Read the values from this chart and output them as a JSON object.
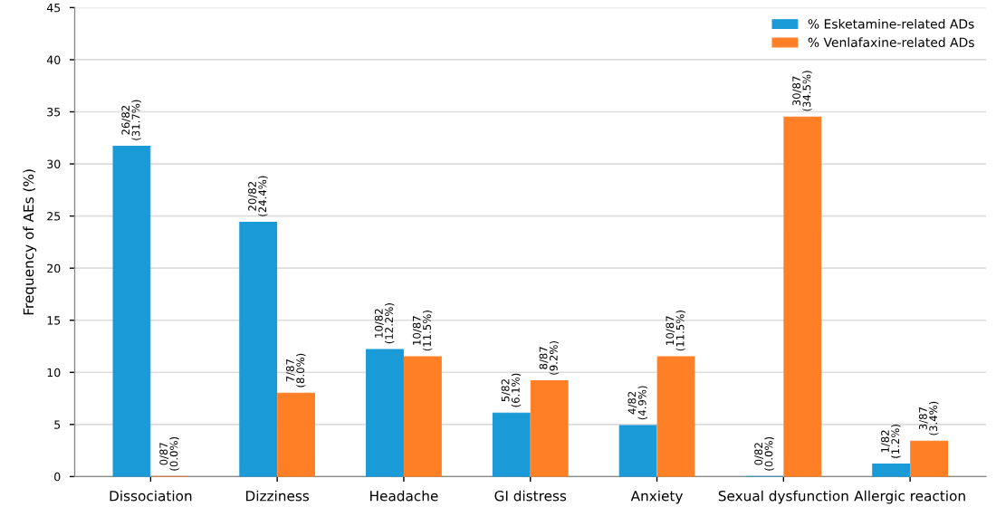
{
  "chart_data": {
    "type": "bar",
    "ylabel": "Frequency of AEs (%)",
    "categories": [
      "Dissociation",
      "Dizziness",
      "Headache",
      "GI distress",
      "Anxiety",
      "Sexual dysfunction",
      "Allergic reaction"
    ],
    "series": [
      {
        "name": "% Esketamine-related ADs",
        "color": "#1a9ad6",
        "values": [
          31.7,
          24.4,
          12.2,
          6.1,
          4.9,
          0.0,
          1.2
        ],
        "value_labels": [
          "26/82\n(31.7%)",
          "20/82\n(24.4%)",
          "10/82\n(12.2%)",
          "5/82\n(6.1%)",
          "4/82\n(4.9%)",
          "0/82\n(0.0%)",
          "1/82\n(1.2%)"
        ]
      },
      {
        "name": "% Venlafaxine-related ADs",
        "color": "#ff7f27",
        "values": [
          0.0,
          8.0,
          11.5,
          9.2,
          11.5,
          34.5,
          3.4
        ],
        "value_labels": [
          "0/87\n(0.0%)",
          "7/87\n(8.0%)",
          "10/87\n(11.5%)",
          "8/87\n(9.2%)",
          "10/87\n(11.5%)",
          "30/87\n(34.5%)",
          "3/87\n(3.4%)"
        ]
      }
    ],
    "ylim": [
      0,
      45
    ],
    "yticks": [
      0,
      5,
      10,
      15,
      20,
      25,
      30,
      35,
      40,
      45
    ],
    "grid": "y",
    "legend": "top right"
  }
}
